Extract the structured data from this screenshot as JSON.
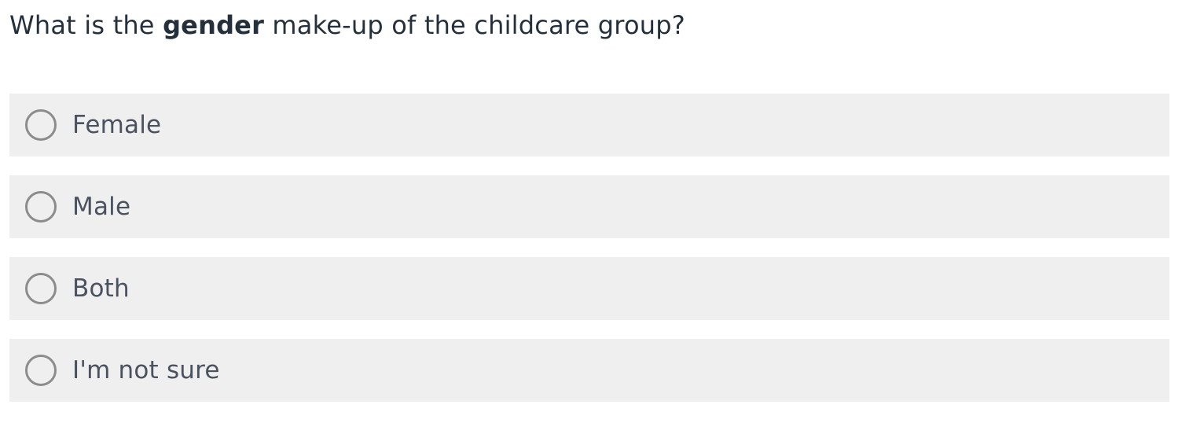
{
  "question": {
    "prefix": "What is the ",
    "emphasis": "gender",
    "suffix": " make-up of the childcare group?"
  },
  "options": [
    {
      "label": "Female",
      "selected": false
    },
    {
      "label": "Male",
      "selected": false
    },
    {
      "label": "Both",
      "selected": false
    },
    {
      "label": "I'm not sure",
      "selected": false
    }
  ],
  "colors": {
    "option_background": "#efefef",
    "radio_border": "#8c8c8c",
    "question_text": "#25303d",
    "option_text": "#4a5260"
  }
}
